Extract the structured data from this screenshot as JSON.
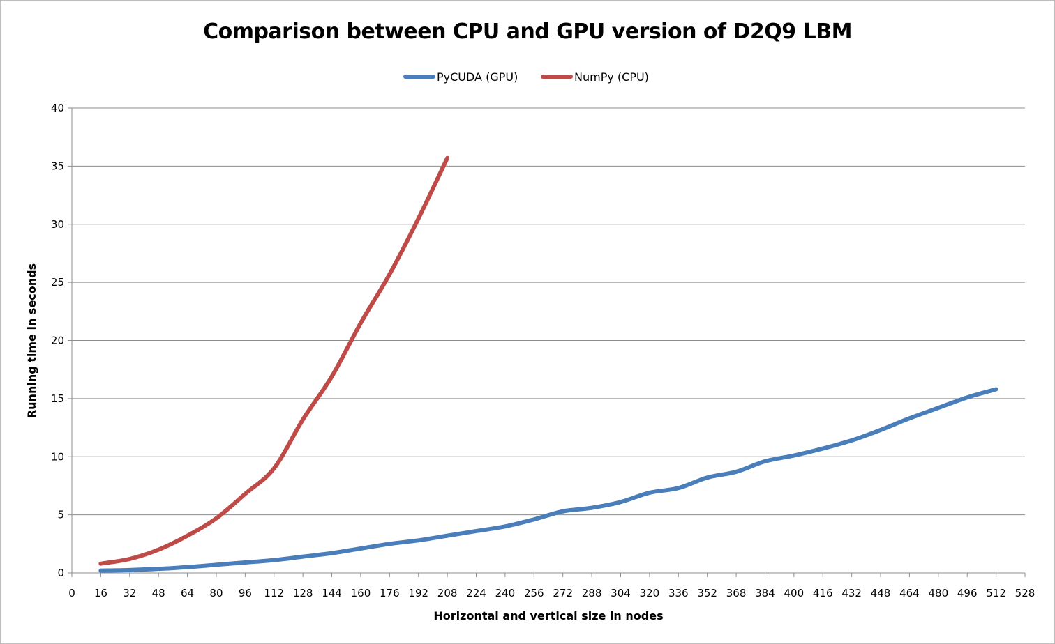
{
  "chart_data": {
    "type": "line",
    "title": "Comparison between CPU and GPU version of D2Q9 LBM",
    "xlabel": "Horizontal and vertical size in nodes",
    "ylabel": "Running time in seconds",
    "xlim": [
      0,
      528
    ],
    "ylim": [
      0,
      40
    ],
    "xticks": [
      0,
      16,
      32,
      48,
      64,
      80,
      96,
      112,
      128,
      144,
      160,
      176,
      192,
      208,
      224,
      240,
      256,
      272,
      288,
      304,
      320,
      336,
      352,
      368,
      384,
      400,
      416,
      432,
      448,
      464,
      480,
      496,
      512,
      528
    ],
    "yticks": [
      0,
      5,
      10,
      15,
      20,
      25,
      30,
      35,
      40
    ],
    "grid": "horizontal",
    "legend_position": "top",
    "series": [
      {
        "name": "PyCUDA (GPU)",
        "color": "#4a7ebb",
        "x": [
          16,
          32,
          48,
          64,
          80,
          96,
          112,
          128,
          144,
          160,
          176,
          192,
          208,
          224,
          240,
          256,
          272,
          288,
          304,
          320,
          336,
          352,
          368,
          384,
          400,
          416,
          432,
          448,
          464,
          480,
          496,
          512
        ],
        "y": [
          0.2,
          0.25,
          0.35,
          0.5,
          0.7,
          0.9,
          1.1,
          1.4,
          1.7,
          2.1,
          2.5,
          2.8,
          3.2,
          3.6,
          4.0,
          4.6,
          5.3,
          5.6,
          6.1,
          6.9,
          7.3,
          8.2,
          8.7,
          9.6,
          10.1,
          10.7,
          11.4,
          12.3,
          13.3,
          14.2,
          15.1,
          15.8
        ]
      },
      {
        "name": "NumPy (CPU)",
        "color": "#be4b48",
        "x": [
          16,
          32,
          48,
          64,
          80,
          96,
          112,
          128,
          144,
          160,
          176,
          192,
          208
        ],
        "y": [
          0.8,
          1.2,
          2.0,
          3.2,
          4.7,
          6.8,
          9.0,
          13.2,
          16.9,
          21.5,
          25.7,
          30.5,
          35.7
        ]
      }
    ]
  }
}
